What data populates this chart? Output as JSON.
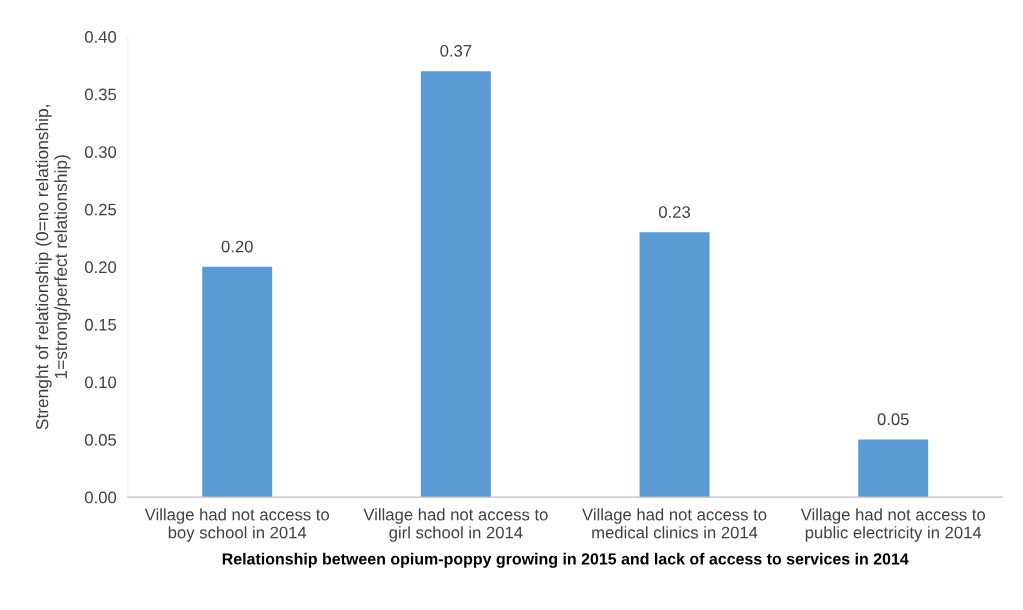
{
  "chart_data": {
    "type": "bar",
    "categories": [
      "Village had not access to\nboy school in 2014",
      "Village had not access to\ngirl school in 2014",
      "Village had not access to\nmedical clinics in 2014",
      "Village had not access to\npublic electricity in 2014"
    ],
    "values": [
      0.2,
      0.37,
      0.23,
      0.05
    ],
    "value_labels": [
      "0.20",
      "0.37",
      "0.23",
      "0.05"
    ],
    "color": "#5b9bd5",
    "xlabel": "Relationship between opium-poppy growing in 2015 and lack of access to services in 2014",
    "ylabel": "Strenght of relationship (0=no relationship,\n1=strong/perfect relationship)",
    "ylim": [
      0,
      0.4
    ],
    "yticks": [
      {
        "value": 0,
        "label": "0.00"
      },
      {
        "value": 0.05,
        "label": "0.05"
      },
      {
        "value": 0.1,
        "label": "0.10"
      },
      {
        "value": 0.15,
        "label": "0.15"
      },
      {
        "value": 0.2,
        "label": "0.20"
      },
      {
        "value": 0.25,
        "label": "0.25"
      },
      {
        "value": 0.3,
        "label": "0.30"
      },
      {
        "value": 0.35,
        "label": "0.35"
      },
      {
        "value": 0.4,
        "label": "0.40"
      }
    ],
    "grid": false,
    "legend": false
  }
}
